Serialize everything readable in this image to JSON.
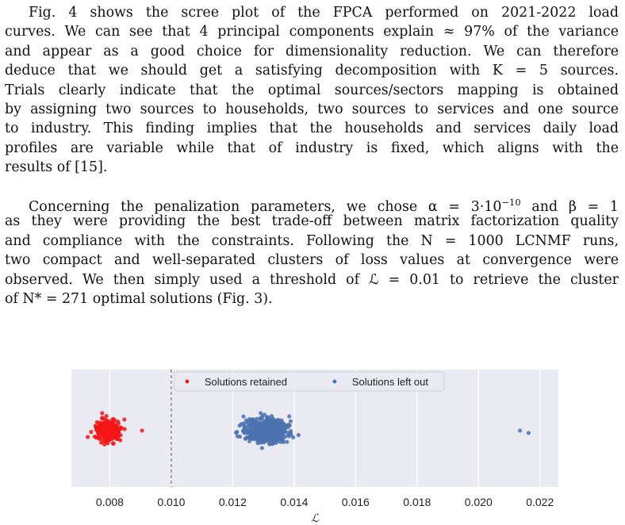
{
  "paragraphs": [
    {
      "lines": [
        "Fig. 4 shows the scree plot of the FPCA performed on 2021-2022 load",
        "curves. We can see that 4 principal components explain ≈ 97% of the variance",
        "and appear as a good choice for dimensionality reduction. We can therefore",
        "deduce that we should get a satisfying decomposition with K = 5 sources.",
        "Trials clearly indicate that the optimal sources/sectors mapping is obtained",
        "by assigning two sources to households, two sources to services and one source",
        "to industry. This finding implies that the households and services daily load",
        "profiles are variable while that of industry is fixed, which aligns with the",
        "results of [15]."
      ]
    },
    {
      "lines": [
        "Concerning the penalization parameters, we chose α = 3·10",
        "as they were providing the best trade-off between matrix factorization quality",
        "and compliance with the constraints. Following the N = 1000 LCNMF runs,",
        "two compact and well-separated clusters of loss values at convergence were",
        "observed. We then simply used a threshold of ℒ = 0.01 to retrieve the cluster",
        "of N* = 271 optimal solutions (Fig. 3)."
      ],
      "line1_exponent": "−10",
      "line1_tail": " and β = 1"
    }
  ],
  "chart_data": {
    "type": "scatter",
    "xlabel": "ℒ",
    "xlim": [
      0.00675,
      0.0226
    ],
    "xticks": [
      "0.008",
      "0.010",
      "0.012",
      "0.014",
      "0.016",
      "0.018",
      "0.020",
      "0.022"
    ],
    "xtick_values": [
      0.008,
      0.01,
      0.012,
      0.014,
      0.016,
      0.018,
      0.02,
      0.022
    ],
    "grid": true,
    "threshold": 0.01,
    "legend_position": "top-center",
    "series": [
      {
        "name": "Solutions retained",
        "color": "#f31616",
        "count": 271,
        "center": 0.00795,
        "spread": 0.00035,
        "outliers": [
          0.00905
        ]
      },
      {
        "name": "Solutions left out",
        "color": "#4c72b0",
        "count": 729,
        "center": 0.0131,
        "spread": 0.0006,
        "outliers": [
          0.02135,
          0.02163
        ]
      }
    ]
  }
}
